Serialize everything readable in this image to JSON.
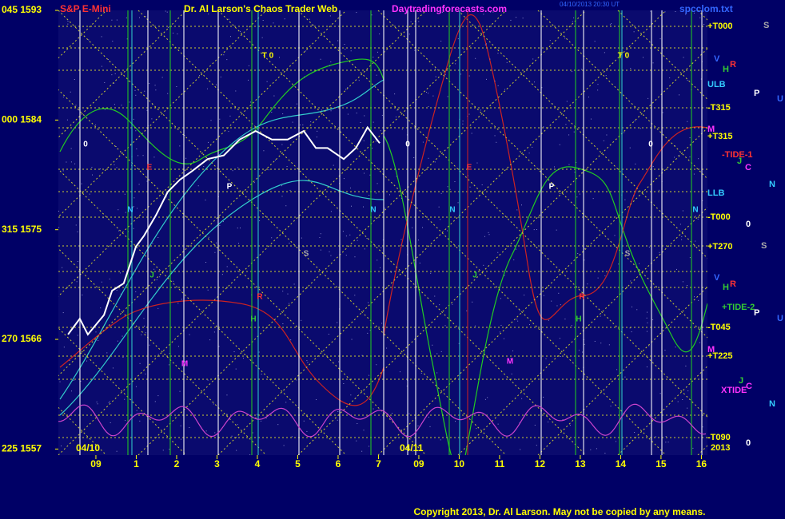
{
  "chart_data": {
    "type": "line",
    "title": "S&P E-Mini",
    "site_title": "Dr. Al Larson's Chaos Trader Web",
    "site_url": "Daytradingforecasts.com",
    "file_name": "spcclom.txt",
    "timestamp": "04/10/2013 20:30 UT",
    "copyright": "Copyright 2013, Dr. Al Larson. May not be copied by any means.",
    "dates": [
      "04/10",
      "04/11"
    ],
    "x": [
      -0.69,
      -0.4,
      -0.2,
      0.2,
      0.4,
      0.69,
      0.99,
      1.19,
      1.49,
      1.78,
      2.08,
      2.38,
      2.77,
      3.17,
      3.56,
      3.96,
      4.36,
      4.75,
      5.15,
      5.45,
      5.74,
      6.14,
      6.44,
      6.73,
      7.03
    ],
    "series": [
      {
        "name": "S&P E-Mini",
        "color": "#ffffff",
        "values": [
          1566.4,
          1567.7,
          1566.4,
          1568.0,
          1570.0,
          1570.6,
          1573.6,
          1574.5,
          1576.2,
          1578.1,
          1579.1,
          1579.8,
          1580.8,
          1581.1,
          1582.4,
          1583.1,
          1582.4,
          1582.4,
          1583.1,
          1581.7,
          1581.7,
          1580.8,
          1581.7,
          1583.4,
          1582.1
        ]
      }
    ],
    "xlim": [
      -0.93,
      15.15
    ],
    "xticks": [
      {
        "value": 0,
        "label": "09"
      },
      1,
      2,
      3,
      4,
      5,
      6,
      7,
      {
        "value": 8,
        "label": "09"
      },
      {
        "value": 9,
        "label": "10"
      },
      {
        "value": 10,
        "label": "11"
      },
      {
        "value": 11,
        "label": "12"
      },
      {
        "value": 12,
        "label": "13"
      },
      {
        "value": 13,
        "label": "14"
      },
      {
        "value": 14,
        "label": "15"
      },
      {
        "value": 15,
        "label": "16"
      }
    ],
    "ylim": [
      1556.5,
      1593
    ],
    "yticks": [
      {
        "value": 1593,
        "label": "045 1593"
      },
      {
        "value": 1584,
        "label": "000 1584"
      },
      {
        "value": 1575,
        "label": "315 1575"
      },
      {
        "value": 1566,
        "label": "270 1566"
      },
      {
        "value": 1557,
        "label": "225 1557"
      }
    ],
    "right_labels": [
      "S",
      "+T000",
      "V",
      "R",
      "H",
      "ULB",
      "P",
      "U",
      "-T315",
      "M",
      "+T315",
      "-TIDE-1",
      "J",
      "C",
      "N",
      "LLB",
      "-T000",
      "0",
      "+T270",
      "S",
      "V",
      "R",
      "H",
      "+TIDE-2",
      "P",
      "U",
      "-T045",
      "M",
      "+T225",
      "J",
      "C",
      "XTIDE",
      "N",
      "-T090",
      "0",
      "2013"
    ],
    "annotations": [
      "0",
      "E",
      "N",
      "P",
      "T 0",
      "S",
      "J",
      "H",
      "R",
      "M",
      "N",
      "0",
      "E",
      "N",
      "J",
      "M",
      "P",
      "R",
      "H",
      "T 0",
      "S",
      "0",
      "N"
    ]
  }
}
